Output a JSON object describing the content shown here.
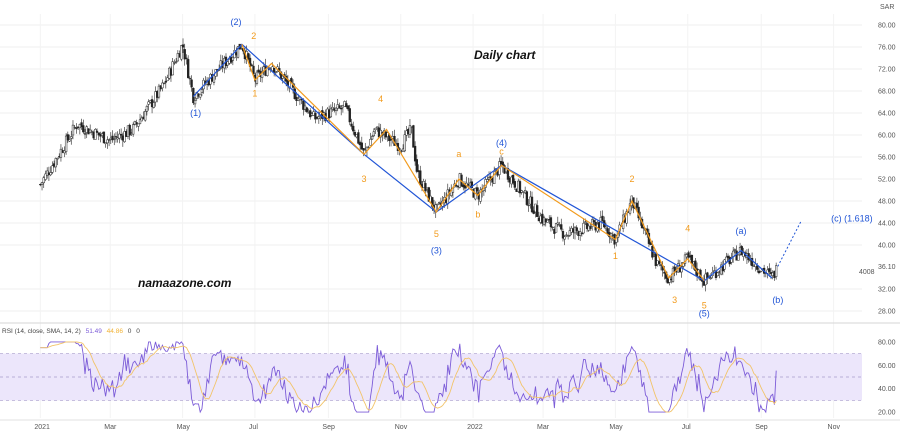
{
  "chart_data": {
    "type": "candlestick",
    "title": "Daily chart",
    "watermark": "namaazone.com",
    "currency": "SAR",
    "last_price_label": "4008",
    "current_price_label": "36.10",
    "y_ticks": [
      "80.00",
      "76.00",
      "72.00",
      "68.00",
      "64.00",
      "60.00",
      "56.00",
      "52.00",
      "48.00",
      "44.00",
      "40.00",
      "36.10",
      "32.00",
      "28.00"
    ],
    "ylim": [
      26,
      82
    ],
    "x_ticks": [
      "2021",
      "Mar",
      "May",
      "Jul",
      "Sep",
      "Nov",
      "2022",
      "Mar",
      "May",
      "Jul",
      "Sep",
      "Nov"
    ],
    "price_path": [
      {
        "d": "2021-01-01",
        "v": 51.0
      },
      {
        "d": "2021-02-01",
        "v": 62.0
      },
      {
        "d": "2021-03-01",
        "v": 59.0
      },
      {
        "d": "2021-03-20",
        "v": 61.0
      },
      {
        "d": "2021-04-15",
        "v": 69.0
      },
      {
        "d": "2021-05-01",
        "v": 76.5
      },
      {
        "d": "2021-05-10",
        "v": 67.0
      },
      {
        "d": "2021-06-20",
        "v": 76.5
      },
      {
        "d": "2021-07-01",
        "v": 70.0
      },
      {
        "d": "2021-07-15",
        "v": 73.0
      },
      {
        "d": "2021-08-20",
        "v": 63.0
      },
      {
        "d": "2021-09-15",
        "v": 65.0
      },
      {
        "d": "2021-10-01",
        "v": 56.5
      },
      {
        "d": "2021-10-10",
        "v": 61.0
      },
      {
        "d": "2021-11-01",
        "v": 58.0
      },
      {
        "d": "2021-11-10",
        "v": 61.0
      },
      {
        "d": "2021-11-15",
        "v": 53.0
      },
      {
        "d": "2021-12-01",
        "v": 46.0
      },
      {
        "d": "2021-12-20",
        "v": 52.0
      },
      {
        "d": "2022-01-05",
        "v": 49.0
      },
      {
        "d": "2022-01-25",
        "v": 54.5
      },
      {
        "d": "2022-03-01",
        "v": 44.5
      },
      {
        "d": "2022-03-20",
        "v": 42.0
      },
      {
        "d": "2022-04-20",
        "v": 44.0
      },
      {
        "d": "2022-05-01",
        "v": 41.0
      },
      {
        "d": "2022-05-15",
        "v": 48.0
      },
      {
        "d": "2022-06-05",
        "v": 36.5
      },
      {
        "d": "2022-06-15",
        "v": 34.0
      },
      {
        "d": "2022-07-01",
        "v": 37.5
      },
      {
        "d": "2022-07-15",
        "v": 33.5
      },
      {
        "d": "2022-08-15",
        "v": 39.0
      },
      {
        "d": "2022-09-10",
        "v": 34.0
      },
      {
        "d": "2022-09-15",
        "v": 36.1
      }
    ],
    "series": [
      {
        "name": "blue-wave-count",
        "color": "#2155d6",
        "points": [
          {
            "d": "2021-05-10",
            "v": 67.0
          },
          {
            "d": "2021-06-20",
            "v": 76.5
          },
          {
            "d": "2021-10-01",
            "v": 56.5
          },
          {
            "d": "2021-12-01",
            "v": 46.0
          },
          {
            "d": "2022-01-25",
            "v": 54.5
          },
          {
            "d": "2022-07-15",
            "v": 33.5
          },
          {
            "d": "2022-08-15",
            "v": 39.0
          },
          {
            "d": "2022-09-10",
            "v": 34.0
          }
        ]
      },
      {
        "name": "orange-wave-count",
        "color": "#f29b1d",
        "points": [
          {
            "d": "2021-06-20",
            "v": 76.5
          },
          {
            "d": "2021-07-01",
            "v": 70.0
          },
          {
            "d": "2021-07-15",
            "v": 73.0
          },
          {
            "d": "2021-10-01",
            "v": 56.5
          },
          {
            "d": "2021-10-20",
            "v": 61.0
          },
          {
            "d": "2021-12-01",
            "v": 46.0
          },
          {
            "d": "2021-12-20",
            "v": 52.0
          },
          {
            "d": "2022-01-05",
            "v": 49.0
          },
          {
            "d": "2022-01-25",
            "v": 54.5
          },
          {
            "d": "2022-05-01",
            "v": 41.0
          },
          {
            "d": "2022-05-15",
            "v": 48.0
          },
          {
            "d": "2022-06-15",
            "v": 34.0
          },
          {
            "d": "2022-07-01",
            "v": 37.5
          },
          {
            "d": "2022-07-15",
            "v": 33.5
          }
        ]
      },
      {
        "name": "projection",
        "color": "#2155d6",
        "dashed": true,
        "points": [
          {
            "d": "2022-09-15",
            "v": 36.1
          },
          {
            "d": "2022-10-05",
            "v": 44.5
          }
        ]
      }
    ],
    "wave_labels": [
      {
        "text": "(1)",
        "d": "2021-05-12",
        "v": 63.5,
        "color": "blue"
      },
      {
        "text": "(2)",
        "d": "2021-06-15",
        "v": 80.0,
        "color": "blue"
      },
      {
        "text": "(3)",
        "d": "2021-12-01",
        "v": 38.5,
        "color": "blue"
      },
      {
        "text": "(4)",
        "d": "2022-01-25",
        "v": 58.0,
        "color": "blue"
      },
      {
        "text": "(5)",
        "d": "2022-07-15",
        "v": 27.0,
        "color": "blue"
      },
      {
        "text": "(a)",
        "d": "2022-08-15",
        "v": 42.0,
        "color": "blue"
      },
      {
        "text": "(b)",
        "d": "2022-09-15",
        "v": 29.5,
        "color": "blue"
      },
      {
        "text": "(c) (1.618)",
        "d": "2022-10-30",
        "v": 44.3,
        "color": "blue"
      },
      {
        "text": "2",
        "d": "2021-06-30",
        "v": 77.5,
        "color": "orange"
      },
      {
        "text": "1",
        "d": "2021-07-01",
        "v": 67.0,
        "color": "orange"
      },
      {
        "text": "4",
        "d": "2021-10-15",
        "v": 66.0,
        "color": "orange"
      },
      {
        "text": "3",
        "d": "2021-10-01",
        "v": 51.5,
        "color": "orange"
      },
      {
        "text": "5",
        "d": "2021-12-01",
        "v": 41.5,
        "color": "orange"
      },
      {
        "text": "a",
        "d": "2021-12-20",
        "v": 56.0,
        "color": "orange"
      },
      {
        "text": "c",
        "d": "2022-01-25",
        "v": 56.5,
        "color": "orange"
      },
      {
        "text": "b",
        "d": "2022-01-05",
        "v": 45.0,
        "color": "orange"
      },
      {
        "text": "2",
        "d": "2022-05-15",
        "v": 51.5,
        "color": "orange"
      },
      {
        "text": "1",
        "d": "2022-05-01",
        "v": 37.5,
        "color": "orange"
      },
      {
        "text": "4",
        "d": "2022-07-01",
        "v": 42.5,
        "color": "orange"
      },
      {
        "text": "3",
        "d": "2022-06-20",
        "v": 29.5,
        "color": "orange"
      },
      {
        "text": "5",
        "d": "2022-07-15",
        "v": 28.5,
        "color": "orange"
      }
    ]
  },
  "rsi_panel": {
    "legend": [
      "RSI (14, close, SMA, 14, 2)",
      "51.49",
      "44.86",
      "0",
      "0"
    ],
    "legend_colors": [
      "#444444",
      "#7c5cd8",
      "#f2b233",
      "#444444",
      "#444444"
    ],
    "y_ticks": [
      "80.00",
      "60.00",
      "40.00",
      "20.00"
    ],
    "ylim": [
      15,
      85
    ],
    "upper_band": 70,
    "lower_band": 30,
    "middle": 50
  }
}
